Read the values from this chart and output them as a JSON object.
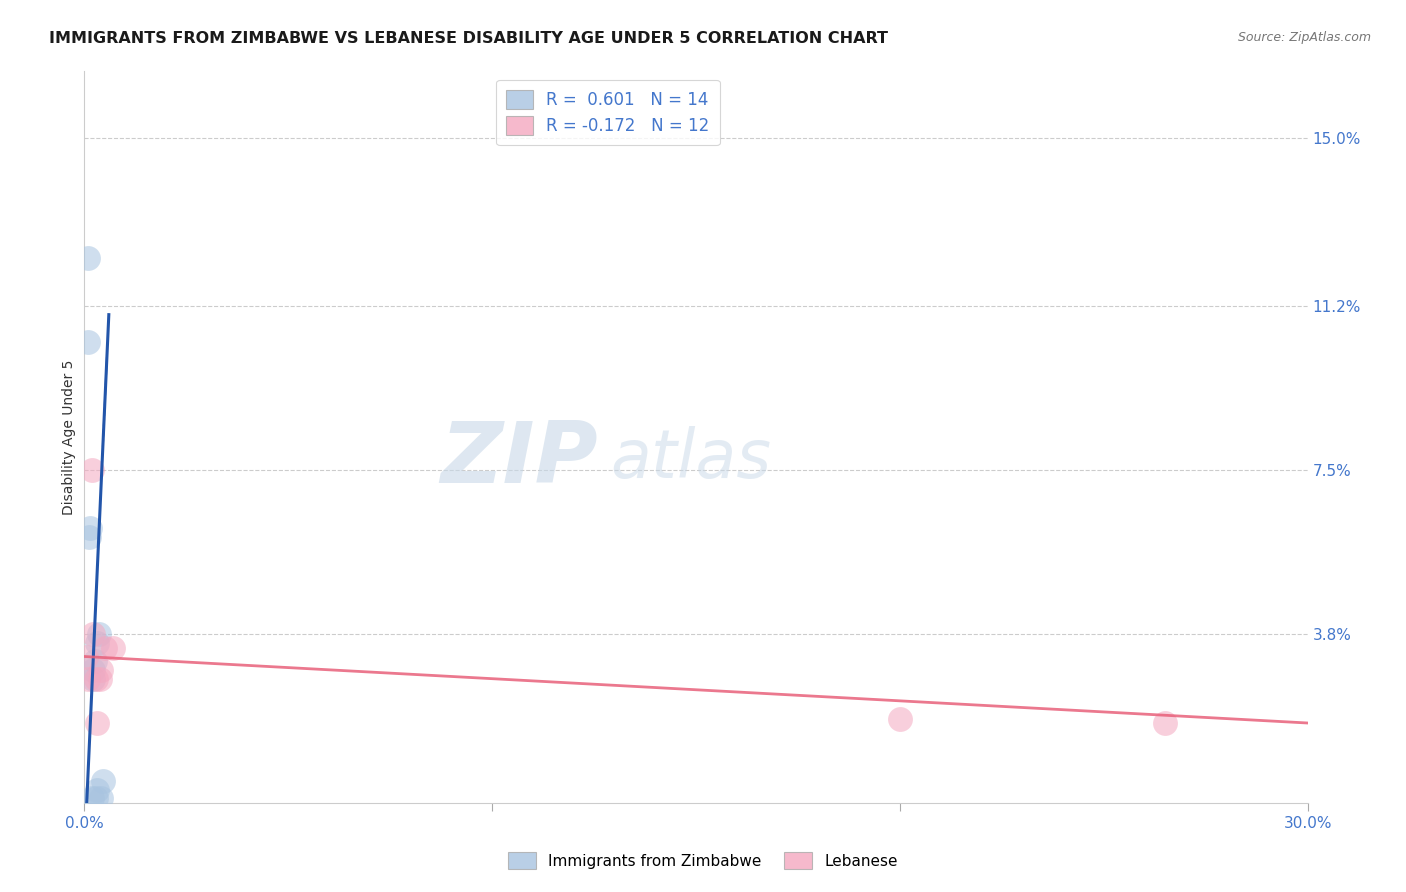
{
  "title": "IMMIGRANTS FROM ZIMBABWE VS LEBANESE DISABILITY AGE UNDER 5 CORRELATION CHART",
  "source": "Source: ZipAtlas.com",
  "ylabel_label": "Disability Age Under 5",
  "y_tick_labels": [
    "3.8%",
    "7.5%",
    "11.2%",
    "15.0%"
  ],
  "y_tick_values": [
    0.038,
    0.075,
    0.112,
    0.15
  ],
  "x_min": 0.0,
  "x_max": 0.3,
  "y_min": 0.0,
  "y_max": 0.165,
  "legend_label1": "Immigrants from Zimbabwe",
  "legend_label2": "Lebanese",
  "blue_scatter_color": "#A8C4E0",
  "pink_scatter_color": "#F4A8C0",
  "blue_line_color": "#2255AA",
  "pink_line_color": "#E8607A",
  "tick_color": "#4477CC",
  "grid_color": "#CCCCCC",
  "background_color": "#FFFFFF",
  "title_fontsize": 11.5,
  "axis_label_fontsize": 10,
  "tick_fontsize": 11,
  "zimbabwe_x": [
    0.0008,
    0.001,
    0.0012,
    0.0014,
    0.0018,
    0.002,
    0.0022,
    0.0025,
    0.0028,
    0.003,
    0.0032,
    0.0035,
    0.004,
    0.0045
  ],
  "zimbabwe_y": [
    0.123,
    0.104,
    0.06,
    0.062,
    0.001,
    0.028,
    0.03,
    0.032,
    0.001,
    0.003,
    0.036,
    0.038,
    0.001,
    0.005
  ],
  "lebanese_x": [
    0.0005,
    0.001,
    0.0018,
    0.0022,
    0.0028,
    0.0032,
    0.0038,
    0.0042,
    0.005,
    0.007,
    0.2,
    0.265
  ],
  "lebanese_y": [
    0.033,
    0.028,
    0.075,
    0.038,
    0.028,
    0.018,
    0.028,
    0.03,
    0.035,
    0.035,
    0.019,
    0.018
  ]
}
